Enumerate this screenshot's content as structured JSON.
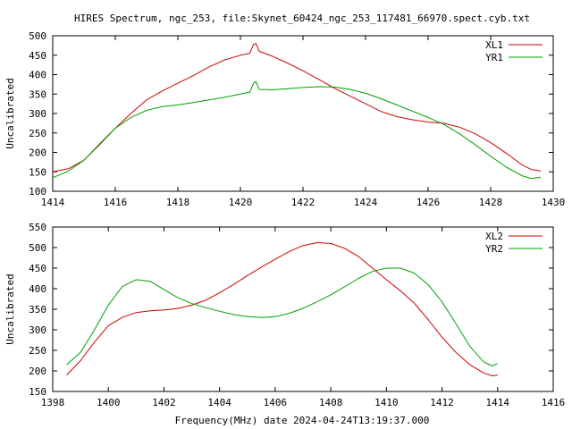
{
  "title": "HIRES Spectrum, ngc_253, file:Skynet_60424_ngc_253_117481_66970.spect.cyb.txt",
  "xlabel": "Frequency(MHz) date 2024-04-24T13:19:37.000",
  "colors": {
    "red": "#d00000",
    "green": "#00a000"
  },
  "chart_data": [
    {
      "type": "line",
      "ylabel": "Uncalibrated",
      "xlim": [
        1414,
        1430
      ],
      "ylim": [
        100,
        500
      ],
      "xticks": [
        1414,
        1416,
        1418,
        1420,
        1422,
        1424,
        1426,
        1428,
        1430
      ],
      "yticks": [
        100,
        150,
        200,
        250,
        300,
        350,
        400,
        450,
        500
      ],
      "legend": "top-right",
      "series": [
        {
          "name": "XL1",
          "color": "#d00000",
          "points": [
            [
              1414.0,
              150
            ],
            [
              1414.5,
              158
            ],
            [
              1415.0,
              180
            ],
            [
              1415.5,
              220
            ],
            [
              1416.0,
              262
            ],
            [
              1416.5,
              300
            ],
            [
              1417.0,
              335
            ],
            [
              1417.5,
              358
            ],
            [
              1418.0,
              378
            ],
            [
              1418.5,
              398
            ],
            [
              1419.0,
              420
            ],
            [
              1419.5,
              438
            ],
            [
              1420.0,
              450
            ],
            [
              1420.3,
              455
            ],
            [
              1420.42,
              478
            ],
            [
              1420.5,
              480
            ],
            [
              1420.6,
              460
            ],
            [
              1421.0,
              448
            ],
            [
              1421.5,
              430
            ],
            [
              1422.0,
              410
            ],
            [
              1422.5,
              388
            ],
            [
              1423.0,
              365
            ],
            [
              1423.5,
              345
            ],
            [
              1424.0,
              325
            ],
            [
              1424.5,
              305
            ],
            [
              1425.0,
              292
            ],
            [
              1425.5,
              284
            ],
            [
              1426.0,
              278
            ],
            [
              1426.5,
              275
            ],
            [
              1427.0,
              265
            ],
            [
              1427.5,
              248
            ],
            [
              1428.0,
              225
            ],
            [
              1428.5,
              198
            ],
            [
              1429.0,
              168
            ],
            [
              1429.3,
              156
            ],
            [
              1429.6,
              152
            ]
          ]
        },
        {
          "name": "YR1",
          "color": "#00a000",
          "points": [
            [
              1414.0,
              135
            ],
            [
              1414.5,
              152
            ],
            [
              1415.0,
              180
            ],
            [
              1415.5,
              222
            ],
            [
              1416.0,
              262
            ],
            [
              1416.5,
              290
            ],
            [
              1417.0,
              308
            ],
            [
              1417.5,
              318
            ],
            [
              1418.0,
              322
            ],
            [
              1418.5,
              328
            ],
            [
              1419.0,
              335
            ],
            [
              1419.5,
              342
            ],
            [
              1420.0,
              350
            ],
            [
              1420.3,
              355
            ],
            [
              1420.42,
              378
            ],
            [
              1420.5,
              382
            ],
            [
              1420.6,
              362
            ],
            [
              1421.0,
              361
            ],
            [
              1421.5,
              364
            ],
            [
              1422.0,
              367
            ],
            [
              1422.5,
              369
            ],
            [
              1423.0,
              368
            ],
            [
              1423.5,
              362
            ],
            [
              1424.0,
              352
            ],
            [
              1424.5,
              338
            ],
            [
              1425.0,
              322
            ],
            [
              1425.5,
              306
            ],
            [
              1426.0,
              290
            ],
            [
              1426.5,
              272
            ],
            [
              1427.0,
              248
            ],
            [
              1427.5,
              220
            ],
            [
              1428.0,
              190
            ],
            [
              1428.5,
              162
            ],
            [
              1429.0,
              140
            ],
            [
              1429.3,
              133
            ],
            [
              1429.6,
              136
            ]
          ]
        }
      ]
    },
    {
      "type": "line",
      "ylabel": "Uncalibrated",
      "xlim": [
        1398,
        1416
      ],
      "ylim": [
        150,
        550
      ],
      "xticks": [
        1398,
        1400,
        1402,
        1404,
        1406,
        1408,
        1410,
        1412,
        1414,
        1416
      ],
      "yticks": [
        150,
        200,
        250,
        300,
        350,
        400,
        450,
        500,
        550
      ],
      "legend": "top-right",
      "series": [
        {
          "name": "XL2",
          "color": "#d00000",
          "points": [
            [
              1398.5,
              190
            ],
            [
              1399.0,
              225
            ],
            [
              1399.5,
              270
            ],
            [
              1400.0,
              310
            ],
            [
              1400.5,
              330
            ],
            [
              1401.0,
              342
            ],
            [
              1401.5,
              346
            ],
            [
              1402.0,
              348
            ],
            [
              1402.5,
              352
            ],
            [
              1403.0,
              360
            ],
            [
              1403.5,
              372
            ],
            [
              1404.0,
              390
            ],
            [
              1404.5,
              410
            ],
            [
              1405.0,
              432
            ],
            [
              1405.5,
              452
            ],
            [
              1406.0,
              472
            ],
            [
              1406.5,
              490
            ],
            [
              1407.0,
              505
            ],
            [
              1407.5,
              512
            ],
            [
              1408.0,
              510
            ],
            [
              1408.5,
              498
            ],
            [
              1409.0,
              478
            ],
            [
              1409.5,
              450
            ],
            [
              1410.0,
              422
            ],
            [
              1410.5,
              395
            ],
            [
              1411.0,
              365
            ],
            [
              1411.5,
              325
            ],
            [
              1412.0,
              282
            ],
            [
              1412.5,
              245
            ],
            [
              1413.0,
              215
            ],
            [
              1413.5,
              195
            ],
            [
              1413.8,
              188
            ],
            [
              1414.0,
              190
            ]
          ]
        },
        {
          "name": "YR2",
          "color": "#00a000",
          "points": [
            [
              1398.5,
              215
            ],
            [
              1399.0,
              245
            ],
            [
              1399.5,
              300
            ],
            [
              1400.0,
              360
            ],
            [
              1400.5,
              405
            ],
            [
              1401.0,
              422
            ],
            [
              1401.5,
              418
            ],
            [
              1402.0,
              398
            ],
            [
              1402.5,
              378
            ],
            [
              1403.0,
              364
            ],
            [
              1403.5,
              354
            ],
            [
              1404.0,
              345
            ],
            [
              1404.5,
              337
            ],
            [
              1405.0,
              332
            ],
            [
              1405.5,
              330
            ],
            [
              1406.0,
              332
            ],
            [
              1406.5,
              340
            ],
            [
              1407.0,
              352
            ],
            [
              1407.5,
              368
            ],
            [
              1408.0,
              385
            ],
            [
              1408.5,
              405
            ],
            [
              1409.0,
              425
            ],
            [
              1409.5,
              442
            ],
            [
              1410.0,
              450
            ],
            [
              1410.5,
              450
            ],
            [
              1411.0,
              438
            ],
            [
              1411.5,
              410
            ],
            [
              1412.0,
              368
            ],
            [
              1412.5,
              315
            ],
            [
              1413.0,
              260
            ],
            [
              1413.5,
              222
            ],
            [
              1413.8,
              212
            ],
            [
              1414.0,
              218
            ]
          ]
        }
      ]
    }
  ]
}
